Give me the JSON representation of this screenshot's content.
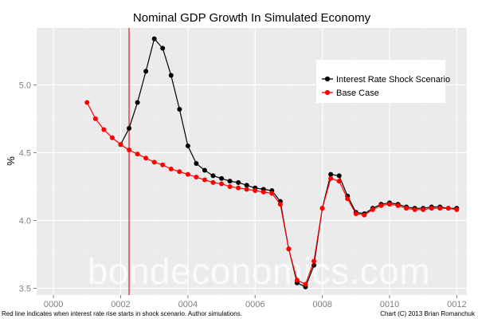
{
  "chart_data": {
    "type": "line",
    "title": "Nominal GDP Growth In Simulated Economy",
    "xlabel": "",
    "ylabel": "%",
    "xlim": [
      -0.5,
      12.3
    ],
    "ylim": [
      3.45,
      5.42
    ],
    "x_ticks": [
      0,
      2,
      4,
      6,
      8,
      10,
      12
    ],
    "x_tick_labels": [
      "0000",
      "0002",
      "0004",
      "0006",
      "0008",
      "0010",
      "0012"
    ],
    "y_ticks": [
      3.5,
      4.0,
      4.5,
      5.0
    ],
    "y_tick_labels": [
      "3.5",
      "4.0",
      "4.5",
      "5.0"
    ],
    "grid": true,
    "legend_position": "top-right",
    "shock_line_x": 2.25,
    "series": [
      {
        "name": "Interest Rate Shock Scenario",
        "color": "#000000",
        "points": [
          [
            2.0,
            4.56
          ],
          [
            2.25,
            4.68
          ],
          [
            2.5,
            4.87
          ],
          [
            2.75,
            5.1
          ],
          [
            3.0,
            5.34
          ],
          [
            3.25,
            5.27
          ],
          [
            3.5,
            5.07
          ],
          [
            3.75,
            4.82
          ],
          [
            4.0,
            4.55
          ],
          [
            4.25,
            4.42
          ],
          [
            4.5,
            4.37
          ],
          [
            4.75,
            4.33
          ],
          [
            5.0,
            4.31
          ],
          [
            5.25,
            4.29
          ],
          [
            5.5,
            4.28
          ],
          [
            5.75,
            4.26
          ],
          [
            6.0,
            4.24
          ],
          [
            6.25,
            4.23
          ],
          [
            6.5,
            4.22
          ],
          [
            6.75,
            4.14
          ],
          [
            7.0,
            3.79
          ],
          [
            7.25,
            3.54
          ],
          [
            7.5,
            3.51
          ],
          [
            7.75,
            3.67
          ],
          [
            8.0,
            4.09
          ],
          [
            8.25,
            4.34
          ],
          [
            8.5,
            4.33
          ],
          [
            8.75,
            4.18
          ],
          [
            9.0,
            4.06
          ],
          [
            9.25,
            4.05
          ],
          [
            9.5,
            4.09
          ],
          [
            9.75,
            4.12
          ],
          [
            10.0,
            4.13
          ],
          [
            10.25,
            4.12
          ],
          [
            10.5,
            4.1
          ],
          [
            10.75,
            4.09
          ],
          [
            11.0,
            4.09
          ],
          [
            11.25,
            4.1
          ],
          [
            11.5,
            4.1
          ],
          [
            11.75,
            4.09
          ],
          [
            12.0,
            4.09
          ]
        ]
      },
      {
        "name": "Base Case",
        "color": "#ff0000",
        "points": [
          [
            1.0,
            4.87
          ],
          [
            1.25,
            4.75
          ],
          [
            1.5,
            4.67
          ],
          [
            1.75,
            4.61
          ],
          [
            2.0,
            4.56
          ],
          [
            2.25,
            4.52
          ],
          [
            2.5,
            4.49
          ],
          [
            2.75,
            4.46
          ],
          [
            3.0,
            4.43
          ],
          [
            3.25,
            4.41
          ],
          [
            3.5,
            4.38
          ],
          [
            3.75,
            4.36
          ],
          [
            4.0,
            4.34
          ],
          [
            4.25,
            4.32
          ],
          [
            4.5,
            4.3
          ],
          [
            4.75,
            4.28
          ],
          [
            5.0,
            4.27
          ],
          [
            5.25,
            4.25
          ],
          [
            5.5,
            4.24
          ],
          [
            5.75,
            4.23
          ],
          [
            6.0,
            4.22
          ],
          [
            6.25,
            4.21
          ],
          [
            6.5,
            4.2
          ],
          [
            6.75,
            4.12
          ],
          [
            7.0,
            3.79
          ],
          [
            7.25,
            3.56
          ],
          [
            7.5,
            3.53
          ],
          [
            7.75,
            3.7
          ],
          [
            8.0,
            4.09
          ],
          [
            8.25,
            4.31
          ],
          [
            8.5,
            4.29
          ],
          [
            8.75,
            4.16
          ],
          [
            9.0,
            4.05
          ],
          [
            9.25,
            4.04
          ],
          [
            9.5,
            4.08
          ],
          [
            9.75,
            4.11
          ],
          [
            10.0,
            4.12
          ],
          [
            10.25,
            4.11
          ],
          [
            10.5,
            4.09
          ],
          [
            10.75,
            4.08
          ],
          [
            11.0,
            4.08
          ],
          [
            11.25,
            4.09
          ],
          [
            11.5,
            4.09
          ],
          [
            11.75,
            4.09
          ],
          [
            12.0,
            4.08
          ]
        ]
      }
    ]
  },
  "watermark": "bondeconomics.com",
  "footer": {
    "left": "Red line indicates when interest rate rise starts in shock scenario. Author simulations.",
    "right": "Chart (C) 2013 Brian Romanchuk"
  },
  "colors": {
    "panel_background": "#ebebeb",
    "grid_major": "#ffffff",
    "grid_minor": "#f3f3f3",
    "shock_line": "#e31a1c"
  }
}
